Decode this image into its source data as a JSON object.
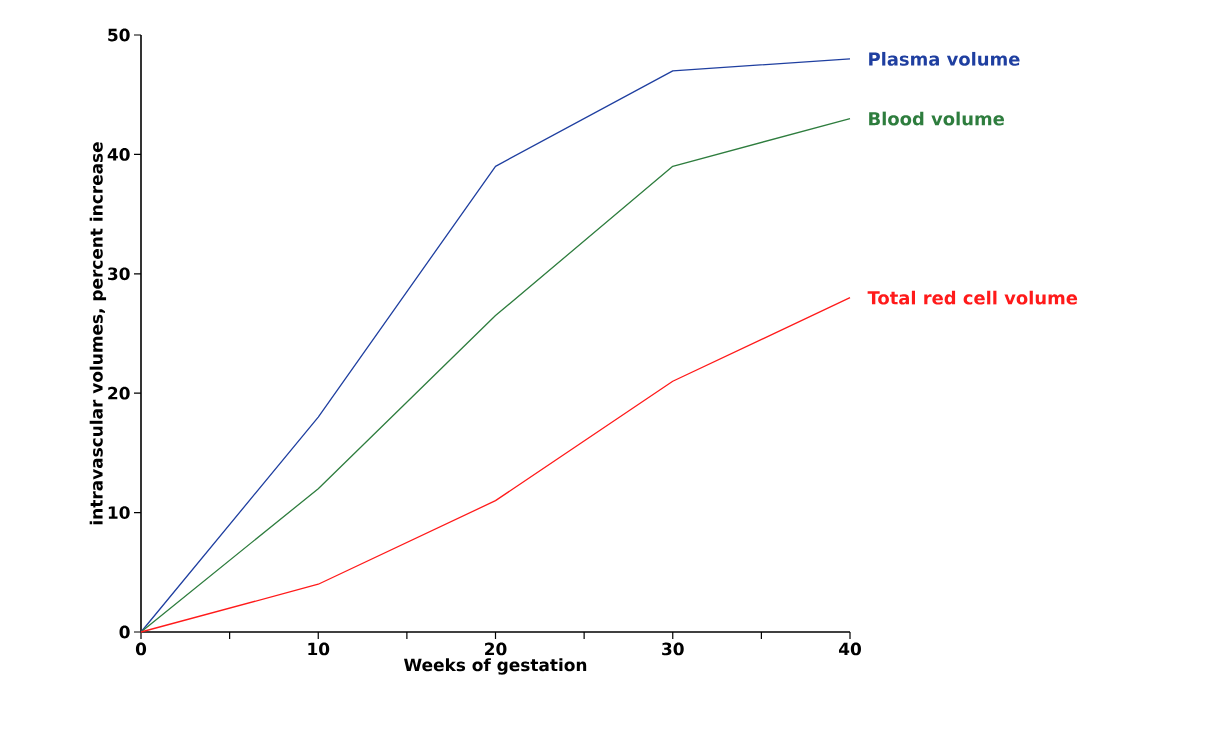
{
  "chart_data": {
    "type": "line",
    "xlabel": "Weeks of gestation",
    "ylabel": "intravascular volumes, percent increase",
    "x": [
      0,
      10,
      20,
      30,
      40
    ],
    "series": [
      {
        "name": "Plasma volume",
        "color": "#1f3fa0",
        "values": [
          0,
          18,
          39,
          47,
          48
        ]
      },
      {
        "name": "Blood volume",
        "color": "#2e7d3e",
        "values": [
          0,
          12,
          26.5,
          39,
          43
        ]
      },
      {
        "name": "Total red cell volume",
        "color": "#ff1a1a",
        "values": [
          0,
          4,
          11,
          21,
          28
        ]
      }
    ],
    "xlim": [
      0,
      40
    ],
    "ylim": [
      0,
      50
    ],
    "xticks": [
      0,
      {
        "value": 5,
        "label": null
      },
      10,
      {
        "value": 15,
        "label": null
      },
      20,
      {
        "value": 25,
        "label": null
      },
      30,
      {
        "value": 35,
        "label": null
      },
      40
    ],
    "yticks": [
      0,
      10,
      20,
      30,
      40,
      50
    ],
    "marker": "none",
    "line_style": "solid"
  }
}
